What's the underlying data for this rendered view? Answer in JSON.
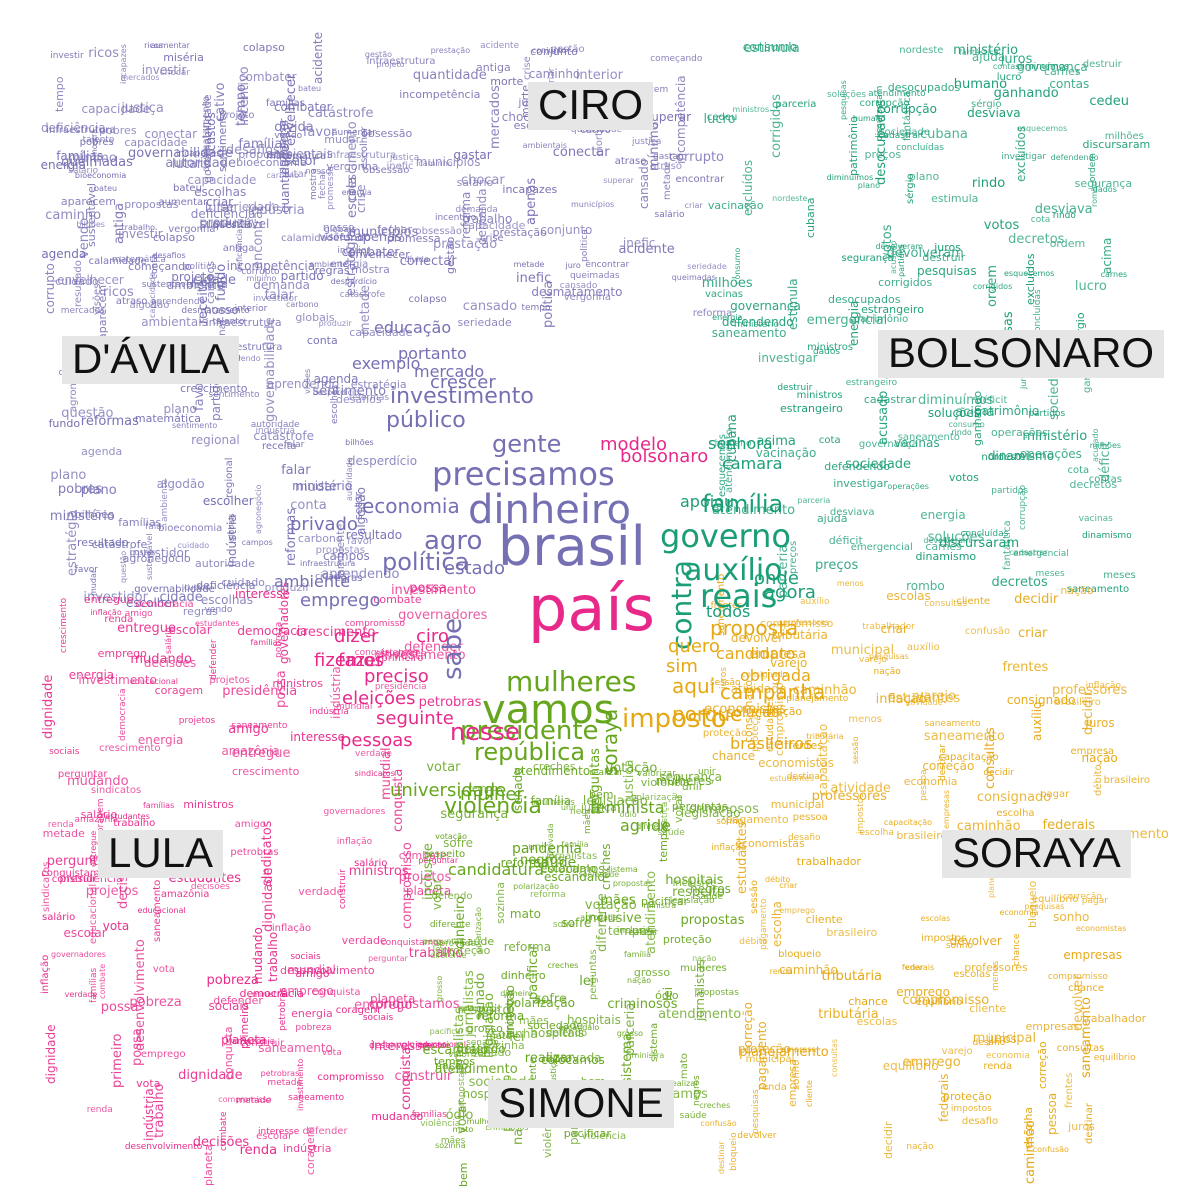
{
  "colors": {
    "ciro": "#7a72b4",
    "bolsonaro": "#1b9e77",
    "davila": "#7570b3",
    "soraya": "#e6a812",
    "lula": "#e7298a",
    "simone": "#66a61e",
    "label_bg": "#e6e6e6"
  },
  "labels": {
    "ciro": "CIRO",
    "davila": "D'ÁVILA",
    "bolsonaro": "BOLSONARO",
    "lula": "LULA",
    "soraya": "SORAYA",
    "simone": "SIMONE"
  },
  "words": {
    "center": [
      {
        "t": "país",
        "c": "lula",
        "s": 62
      },
      {
        "t": "brasil",
        "c": "davila",
        "s": 54
      },
      {
        "t": "dinheiro",
        "c": "davila",
        "s": 40
      },
      {
        "t": "vamos",
        "c": "simone",
        "s": 40
      },
      {
        "t": "precisamos",
        "c": "davila",
        "s": 32
      },
      {
        "t": "governo",
        "c": "bolsonaro",
        "s": 32
      },
      {
        "t": "reais",
        "c": "bolsonaro",
        "s": 32
      },
      {
        "t": "auxílio",
        "c": "bolsonaro",
        "s": 30
      },
      {
        "t": "mulheres",
        "c": "simone",
        "s": 28
      },
      {
        "t": "presidente",
        "c": "simone",
        "s": 26
      },
      {
        "t": "imposto",
        "c": "soraya",
        "s": 26
      },
      {
        "t": "república",
        "c": "simone",
        "s": 24
      },
      {
        "t": "família",
        "c": "bolsonaro",
        "s": 24
      },
      {
        "t": "política",
        "c": "davila",
        "s": 24
      },
      {
        "t": "gente",
        "c": "davila",
        "s": 24
      },
      {
        "t": "público",
        "c": "davila",
        "s": 22
      },
      {
        "t": "investimento",
        "c": "davila",
        "s": 22
      },
      {
        "t": "agro",
        "c": "davila",
        "s": 26
      },
      {
        "t": "economia",
        "c": "davila",
        "s": 20
      },
      {
        "t": "contra",
        "c": "bolsonaro",
        "s": 28
      },
      {
        "t": "sabe",
        "c": "davila",
        "s": 26
      },
      {
        "t": "nesse",
        "c": "lula",
        "s": 24
      },
      {
        "t": "violência",
        "c": "simone",
        "s": 22
      },
      {
        "t": "soraya",
        "c": "simone",
        "s": 20
      },
      {
        "t": "campanha",
        "c": "soraya",
        "s": 20
      },
      {
        "t": "proposta",
        "c": "soraya",
        "s": 20
      },
      {
        "t": "porque",
        "c": "soraya",
        "s": 20
      },
      {
        "t": "aqui",
        "c": "soraya",
        "s": 20
      },
      {
        "t": "ciro",
        "c": "lula",
        "s": 18
      },
      {
        "t": "bolsonaro",
        "c": "lula",
        "s": 18
      },
      {
        "t": "modelo",
        "c": "lula",
        "s": 18
      },
      {
        "t": "dizer",
        "c": "lula",
        "s": 18
      },
      {
        "t": "fazer",
        "c": "lula",
        "s": 18
      },
      {
        "t": "eleições",
        "c": "lula",
        "s": 18
      },
      {
        "t": "seguinte",
        "c": "lula",
        "s": 18
      },
      {
        "t": "pessoas",
        "c": "lula",
        "s": 18
      },
      {
        "t": "preciso",
        "c": "lula",
        "s": 18
      },
      {
        "t": "fizemos",
        "c": "lula",
        "s": 18
      },
      {
        "t": "universidade",
        "c": "simone",
        "s": 18
      },
      {
        "t": "mulher",
        "c": "simone",
        "s": 18
      },
      {
        "t": "agride",
        "c": "simone",
        "s": 16
      },
      {
        "t": "feminista",
        "c": "simone",
        "s": 16
      },
      {
        "t": "pandemia",
        "c": "simone",
        "s": 14
      },
      {
        "t": "saúde",
        "c": "simone",
        "s": 14
      },
      {
        "t": "candidatura",
        "c": "simone",
        "s": 16
      },
      {
        "t": "emprego",
        "c": "davila",
        "s": 18
      },
      {
        "t": "estado",
        "c": "davila",
        "s": 18
      },
      {
        "t": "privado",
        "c": "davila",
        "s": 18
      },
      {
        "t": "ambiente",
        "c": "davila",
        "s": 16
      },
      {
        "t": "educação",
        "c": "davila",
        "s": 16
      },
      {
        "t": "portanto",
        "c": "davila",
        "s": 16
      },
      {
        "t": "mercado",
        "c": "davila",
        "s": 16
      },
      {
        "t": "crescer",
        "c": "davila",
        "s": 18
      },
      {
        "t": "exemplo",
        "c": "davila",
        "s": 16
      },
      {
        "t": "agora",
        "c": "bolsonaro",
        "s": 18
      },
      {
        "t": "onde",
        "c": "bolsonaro",
        "s": 18
      },
      {
        "t": "todos",
        "c": "bolsonaro",
        "s": 16
      },
      {
        "t": "apoiou",
        "c": "bolsonaro",
        "s": 16
      },
      {
        "t": "camara",
        "c": "bolsonaro",
        "s": 16
      },
      {
        "t": "senhora",
        "c": "bolsonaro",
        "s": 16
      },
      {
        "t": "candidato",
        "c": "soraya",
        "s": 16
      },
      {
        "t": "brasileiros",
        "c": "soraya",
        "s": 16
      },
      {
        "t": "obrigada",
        "c": "soraya",
        "s": 16
      },
      {
        "t": "solução",
        "c": "soraya",
        "s": 14
      },
      {
        "t": "quero",
        "c": "soraya",
        "s": 18
      },
      {
        "t": "sim",
        "c": "soraya",
        "s": 18
      }
    ],
    "filler_ciro": [
      "seriedade",
      "inefic",
      "começando",
      "cansado",
      "ambientais",
      "atraso",
      "conectar",
      "envelhecer",
      "cativo",
      "antiga",
      "chocar",
      "metade",
      "acidente",
      "política",
      "gestão",
      "fechar",
      "bateu",
      "capacidade",
      "incompetência",
      "obsessão",
      "aparecem",
      "quantidade",
      "mostra",
      "encontrar",
      "colapso",
      "prestação",
      "morte",
      "aumentar",
      "desmatamento",
      "incapazes",
      "crise",
      "caminho",
      "mercados",
      "combater",
      "ricos",
      "lutar",
      "corrupto",
      "promessa",
      "criar",
      "calamidade",
      "vergonha",
      "salário",
      "mínimo",
      "queimadas",
      "interior",
      "municípios",
      "incentivo",
      "conjunto",
      "tempo",
      "justiça",
      "demanda",
      "projeto",
      "investir",
      "infraestrutura",
      "miséria",
      "reforma",
      "trabalho",
      "dívida",
      "juro",
      "gastar",
      "apenas",
      "escola",
      "superar"
    ],
    "filler_bolsonaro": [
      "discursaram",
      "defendendo",
      "estimula",
      "rindo",
      "devolveram",
      "excluídos",
      "esquecemos",
      "humano",
      "diminuímos",
      "fantástica",
      "destruir",
      "vacinas",
      "corrigidos",
      "acusado",
      "concluídas",
      "carnes",
      "desviava",
      "cadastrar",
      "desocupados",
      "ganhando",
      "meses",
      "votos",
      "cubana",
      "sérgio",
      "atendimento",
      "corrupção",
      "ordem",
      "acima",
      "parceria",
      "lucro",
      "consumo",
      "milhões",
      "energia",
      "governança",
      "estrangeiro",
      "dinamismo",
      "cedeu",
      "patrimônio",
      "cota",
      "operações",
      "preços",
      "juros",
      "contas",
      "sociedade",
      "soluções",
      "partidos",
      "rombo",
      "déficit",
      "saneamento",
      "pesquisas",
      "ministros",
      "ajuda",
      "ministério",
      "nordeste",
      "vacinação",
      "emergencial",
      "investigar",
      "decretos",
      "plano",
      "dados",
      "segurança"
    ],
    "filler_davila": [
      "ambiente",
      "desperdício",
      "cuidado",
      "catástrofe",
      "sentimento",
      "famílias",
      "partido",
      "falar",
      "conta",
      "autoridade",
      "algodão",
      "aprendendo",
      "sustentável",
      "escolhas",
      "custos",
      "favor",
      "deficiência",
      "governabilidade",
      "nosso",
      "vendo",
      "resultado",
      "escolher",
      "regras",
      "propostas",
      "fundo",
      "pobres",
      "plano",
      "mudar",
      "estratégia",
      "indústria",
      "talento",
      "matemática",
      "energia",
      "campos",
      "infraestrutura",
      "regional",
      "ministério",
      "bioeconomia",
      "carbono",
      "agronegócio",
      "capacidade",
      "bilhões",
      "visões",
      "questão",
      "setor",
      "receita",
      "cidade",
      "produzir",
      "desafios",
      "globais",
      "reformas",
      "agenda",
      "crescimento",
      "investidor"
    ],
    "filler_lula": [
      "possa",
      "combate",
      "conquista",
      "famílias",
      "coragem",
      "dignidade",
      "metade",
      "perguntar",
      "defender",
      "decisões",
      "sociais",
      "planeta",
      "interesse",
      "democracia",
      "vota",
      "sindicatos",
      "ministros",
      "entregue",
      "mudando",
      "amigo",
      "desenvolvimento",
      "governadores",
      "inflação",
      "projetos",
      "trabalho",
      "estudantes",
      "renda",
      "salário",
      "investimento",
      "pobreza",
      "emprego",
      "crescimento",
      "verdade",
      "conquistamos",
      "construir",
      "educacional",
      "amazônia",
      "saneamento",
      "indústria",
      "compromisso",
      "petrobras",
      "presidência",
      "primeiro",
      "mundial",
      "escolar",
      "energia"
    ],
    "filler_soraya": [
      "inflação",
      "chance",
      "consignado",
      "professores",
      "compromisso",
      "proteção",
      "estudantes",
      "brasileiro",
      "empresa",
      "caminhão",
      "economistas",
      "equilíbrio",
      "frentes",
      "cliente",
      "correção",
      "saneamento",
      "municipal",
      "nação",
      "consultas",
      "pagamento",
      "varejo",
      "decidir",
      "devolver",
      "escolas",
      "sonho",
      "destinar",
      "criar",
      "escolha",
      "tributária",
      "juros",
      "pagar",
      "impostos",
      "renda",
      "confusão",
      "débito",
      "atividade",
      "economia",
      "desafio",
      "bloqueio",
      "empresas",
      "pessoa",
      "menos",
      "federais",
      "planejamento",
      "sessão",
      "trabalhador",
      "capacitação",
      "emprego",
      "auxílio",
      "pesquisas"
    ],
    "filler_simone": [
      "jornalistas",
      "inclusive",
      "colocamos",
      "senado",
      "perguntas",
      "mulheres",
      "criminosos",
      "hospitais",
      "proteção",
      "mães",
      "sofre",
      "creches",
      "pacificar",
      "realizar",
      "sozinha",
      "legislação",
      "justiça",
      "ministra",
      "aprovada",
      "reforma",
      "dinheiro",
      "sociedade",
      "mato",
      "grosso",
      "lei",
      "tempos",
      "polarização",
      "ódio",
      "saúde",
      "escândalo",
      "votar",
      "nação",
      "diferente",
      "atendimento",
      "sistema",
      "unir",
      "propostas",
      "negros",
      "violência",
      "família",
      "parceria",
      "segurança",
      "valorizar",
      "votação",
      "defendo",
      "respeito",
      "bem"
    ]
  }
}
